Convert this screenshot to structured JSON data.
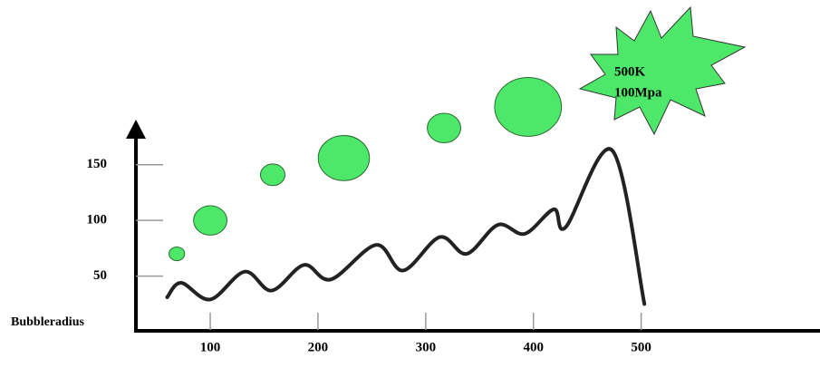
{
  "chart_data": {
    "type": "bubble-line",
    "y_label": "Bubbleradius",
    "annotation": [
      "500K",
      "100Mpa"
    ],
    "xlim": [
      31,
      666
    ],
    "ylim": [
      0,
      184
    ],
    "xticks": [
      100,
      200,
      300,
      400,
      500
    ],
    "yticks": [
      50,
      100,
      150
    ],
    "bubbles": {
      "color": "#4de86a",
      "x": [
        69,
        100,
        158,
        224,
        317,
        395
      ],
      "y": [
        70,
        100,
        141,
        156,
        183,
        202
      ],
      "sizes": [
        7,
        15,
        11,
        23,
        15,
        30
      ]
    },
    "line": {
      "color": "#222222",
      "x": [
        60,
        73,
        100,
        132,
        157,
        187,
        212,
        254,
        279,
        313,
        338,
        367,
        392,
        419,
        430,
        473,
        503
      ],
      "y": [
        31,
        44,
        29,
        54,
        37,
        60,
        47,
        78,
        55,
        85,
        70,
        96,
        88,
        110,
        94,
        163,
        25
      ]
    }
  }
}
